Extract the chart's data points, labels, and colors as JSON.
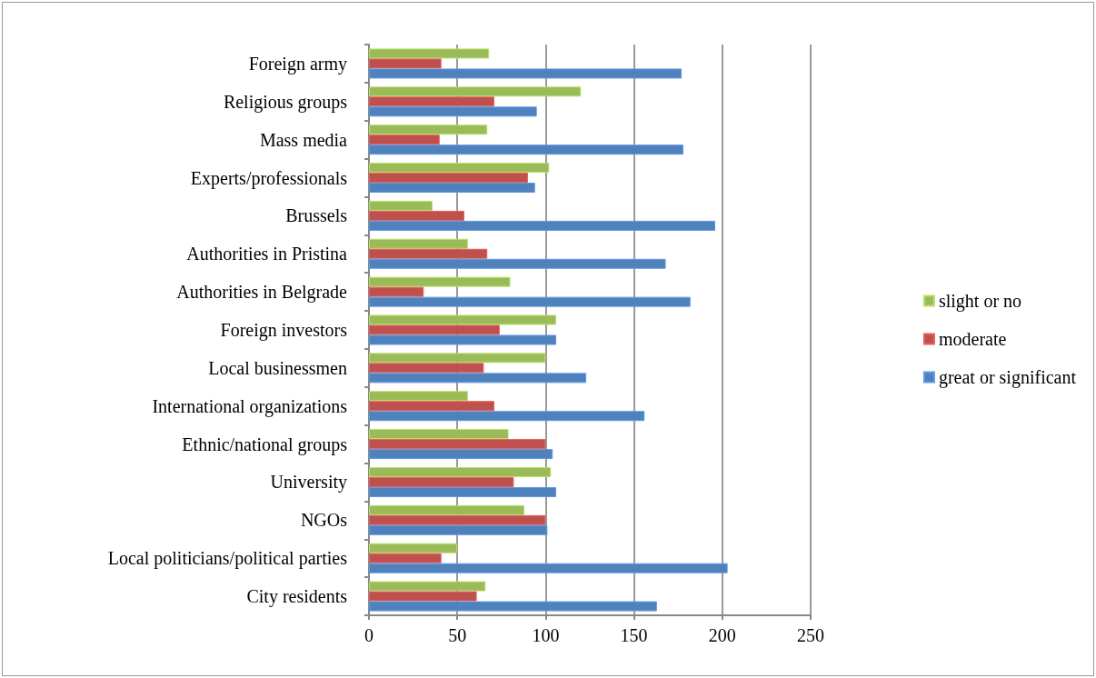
{
  "chart_data": {
    "type": "bar",
    "orientation": "horizontal",
    "categories": [
      "Foreign army",
      "Religious groups",
      "Mass media",
      "Experts/professionals",
      "Brussels",
      "Authorities in Pristina",
      "Authorities in Belgrade",
      "Foreign investors",
      "Local businessmen",
      "International organizations",
      "Ethnic/national groups",
      "University",
      "NGOs",
      "Local politicians/political parties",
      "City residents"
    ],
    "series": [
      {
        "name": "slight or no",
        "color": "#9bbb59",
        "values": [
          68,
          120,
          67,
          102,
          36,
          56,
          80,
          106,
          100,
          56,
          79,
          103,
          88,
          50,
          66
        ]
      },
      {
        "name": "moderate",
        "color": "#c0504d",
        "values": [
          41,
          71,
          40,
          90,
          54,
          67,
          31,
          74,
          65,
          71,
          100,
          82,
          100,
          41,
          61
        ]
      },
      {
        "name": "great or significant",
        "color": "#4f81bd",
        "values": [
          177,
          95,
          178,
          94,
          196,
          168,
          182,
          106,
          123,
          156,
          104,
          106,
          101,
          203,
          163
        ]
      }
    ],
    "xlim": [
      0,
      250
    ],
    "xticks": [
      0,
      50,
      100,
      150,
      200,
      250
    ],
    "grid": "x",
    "legend": "right"
  }
}
